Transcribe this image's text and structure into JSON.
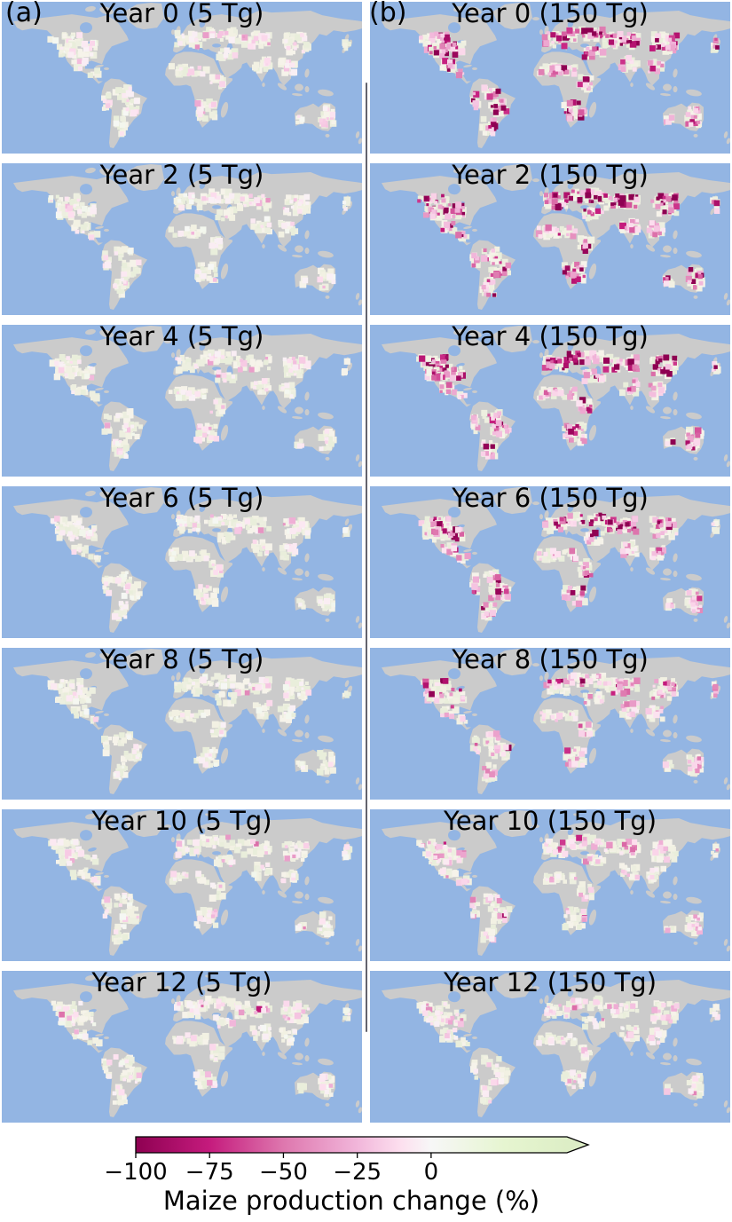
{
  "figure": {
    "panel_label_a": "(a)",
    "panel_label_b": "(b)"
  },
  "chart_data": {
    "type": "heatmap",
    "subtype": "world-choropleth-map-grid",
    "description": "Grid of 14 world maps (7 rows x 2 columns) showing simulated maize production change (%) by year after a soot-injection event; column a = 5 Tg soot, column b = 150 Tg soot. Gray land = no maize data, cream/green cropland = little or no change, pink-to-dark-magenta = production loss.",
    "columns": [
      {
        "id": "a",
        "scenario": "5 Tg"
      },
      {
        "id": "b",
        "scenario": "150 Tg"
      }
    ],
    "rows_years": [
      0,
      2,
      4,
      6,
      8,
      10,
      12
    ],
    "panels": [
      {
        "title": "Year 0 (5 Tg)",
        "column": "a",
        "row": 0,
        "year": 0,
        "soot_tg": 5,
        "approx_mean_change_pct": -13
      },
      {
        "title": "Year 2 (5 Tg)",
        "column": "a",
        "row": 1,
        "year": 2,
        "soot_tg": 5,
        "approx_mean_change_pct": -9
      },
      {
        "title": "Year 4 (5 Tg)",
        "column": "a",
        "row": 2,
        "year": 4,
        "soot_tg": 5,
        "approx_mean_change_pct": -13
      },
      {
        "title": "Year 6 (5 Tg)",
        "column": "a",
        "row": 3,
        "year": 6,
        "soot_tg": 5,
        "approx_mean_change_pct": -9
      },
      {
        "title": "Year 8 (5 Tg)",
        "column": "a",
        "row": 4,
        "year": 8,
        "soot_tg": 5,
        "approx_mean_change_pct": -7
      },
      {
        "title": "Year 10 (5 Tg)",
        "column": "a",
        "row": 5,
        "year": 10,
        "soot_tg": 5,
        "approx_mean_change_pct": -12
      },
      {
        "title": "Year 12 (5 Tg)",
        "column": "a",
        "row": 6,
        "year": 12,
        "soot_tg": 5,
        "approx_mean_change_pct": -10
      },
      {
        "title": "Year 0 (150 Tg)",
        "column": "b",
        "row": 0,
        "year": 0,
        "soot_tg": 150,
        "approx_mean_change_pct": -58
      },
      {
        "title": "Year 2 (150 Tg)",
        "column": "b",
        "row": 1,
        "year": 2,
        "soot_tg": 150,
        "approx_mean_change_pct": -62
      },
      {
        "title": "Year 4 (150 Tg)",
        "column": "b",
        "row": 2,
        "year": 4,
        "soot_tg": 150,
        "approx_mean_change_pct": -58
      },
      {
        "title": "Year 6 (150 Tg)",
        "column": "b",
        "row": 3,
        "year": 6,
        "soot_tg": 150,
        "approx_mean_change_pct": -48
      },
      {
        "title": "Year 8 (150 Tg)",
        "column": "b",
        "row": 4,
        "year": 8,
        "soot_tg": 150,
        "approx_mean_change_pct": -33
      },
      {
        "title": "Year 10 (150 Tg)",
        "column": "b",
        "row": 5,
        "year": 10,
        "soot_tg": 150,
        "approx_mean_change_pct": -22
      },
      {
        "title": "Year 12 (150 Tg)",
        "column": "b",
        "row": 6,
        "year": 12,
        "soot_tg": 150,
        "approx_mean_change_pct": -15
      }
    ],
    "colorbar": {
      "label": "Maize production change (%)",
      "tick_values": [
        -100,
        -75,
        -50,
        -25,
        0
      ],
      "tick_labels": [
        "−100",
        "−75",
        "−50",
        "−25",
        "0"
      ],
      "range": [
        -100,
        46
      ],
      "extend": "max",
      "stops": [
        [
          -100,
          "#8e0152"
        ],
        [
          -75,
          "#c51b7d"
        ],
        [
          -50,
          "#de77ae"
        ],
        [
          -25,
          "#f1b6da"
        ],
        [
          -10,
          "#fde0ef"
        ],
        [
          0,
          "#f7f7f7"
        ],
        [
          25,
          "#e6f5d0"
        ],
        [
          46,
          "#ddeec6"
        ]
      ]
    },
    "map_colors": {
      "ocean": "#93b5e3",
      "land_no_data": "#cbcbcb",
      "cropland_base": "#f2f1e3"
    }
  }
}
